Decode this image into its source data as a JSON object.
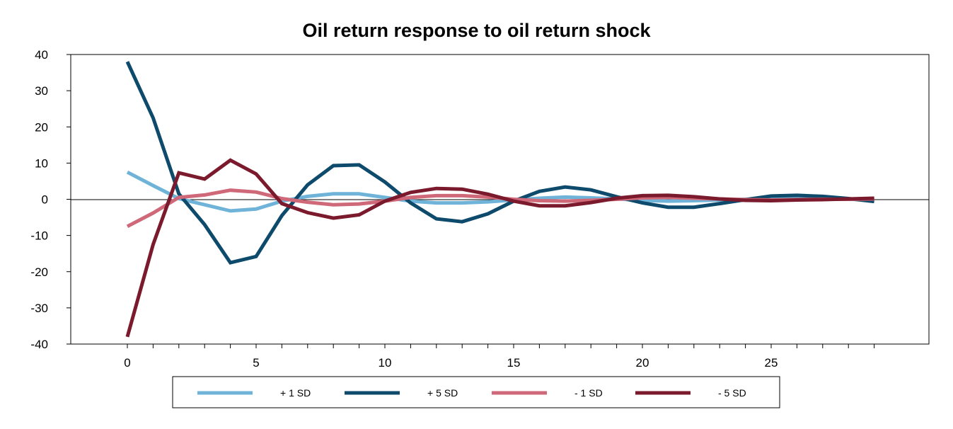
{
  "chart_data": {
    "type": "line",
    "title": "Oil return response to oil return shock",
    "xlabel": "",
    "ylabel": "",
    "xlim": [
      -2,
      31
    ],
    "ylim": [
      -40,
      40
    ],
    "x_ticks": [
      0,
      5,
      10,
      15,
      20,
      25
    ],
    "y_ticks": [
      40,
      30,
      20,
      10,
      0,
      -10,
      -20,
      -30,
      -40
    ],
    "x_tick_labels": [
      "0",
      "5",
      "10",
      "15",
      "20",
      "25"
    ],
    "y_tick_labels": [
      "40",
      "30",
      "20",
      "10",
      "0",
      "-10",
      "-20",
      "-30",
      "-40"
    ],
    "grid": false,
    "legend_position": "bottom",
    "x": [
      0,
      1,
      2,
      3,
      4,
      5,
      6,
      7,
      8,
      9,
      10,
      11,
      12,
      13,
      14,
      15,
      16,
      17,
      18,
      19,
      20,
      21,
      22,
      23,
      24,
      25,
      26,
      27,
      28,
      29
    ],
    "series": [
      {
        "name": "+ 1 SD",
        "color": "#6fb4d8",
        "values": [
          7.5,
          3.8,
          0.2,
          -1.5,
          -3.2,
          -2.7,
          -0.5,
          0.8,
          1.5,
          1.5,
          0.5,
          -0.5,
          -1.0,
          -1.0,
          -0.7,
          -0.2,
          0.3,
          0.6,
          0.4,
          0.1,
          -0.3,
          -0.5,
          -0.4,
          -0.2,
          0.0,
          0.1,
          0.1,
          0.1,
          0.0,
          -0.1
        ]
      },
      {
        "name": "+ 5 SD",
        "color": "#0d4a6b",
        "values": [
          38.0,
          22.5,
          1.5,
          -7.0,
          -17.5,
          -15.8,
          -4.5,
          4.0,
          9.3,
          9.5,
          4.8,
          -1.0,
          -5.4,
          -6.2,
          -4.0,
          -0.5,
          2.2,
          3.4,
          2.6,
          0.7,
          -1.0,
          -2.2,
          -2.2,
          -1.2,
          -0.1,
          0.9,
          1.1,
          0.8,
          0.2,
          -0.6
        ]
      },
      {
        "name": "- 1 SD",
        "color": "#cf6878",
        "values": [
          -7.5,
          -3.8,
          0.5,
          1.2,
          2.5,
          2.0,
          0.2,
          -0.8,
          -1.5,
          -1.3,
          -0.5,
          0.5,
          1.0,
          1.0,
          0.6,
          0.0,
          -0.4,
          -0.5,
          -0.3,
          0.0,
          0.4,
          0.5,
          0.3,
          0.1,
          -0.1,
          -0.2,
          -0.1,
          0.0,
          0.0,
          0.1
        ]
      },
      {
        "name": "- 5 SD",
        "color": "#7a1a2c",
        "values": [
          -38.0,
          -12.5,
          7.3,
          5.6,
          10.8,
          7.0,
          -1.2,
          -3.7,
          -5.2,
          -4.3,
          -0.5,
          1.9,
          3.0,
          2.8,
          1.4,
          -0.5,
          -1.8,
          -1.8,
          -0.9,
          0.3,
          1.0,
          1.1,
          0.7,
          0.1,
          -0.3,
          -0.4,
          -0.2,
          -0.1,
          0.1,
          0.3
        ]
      }
    ]
  }
}
